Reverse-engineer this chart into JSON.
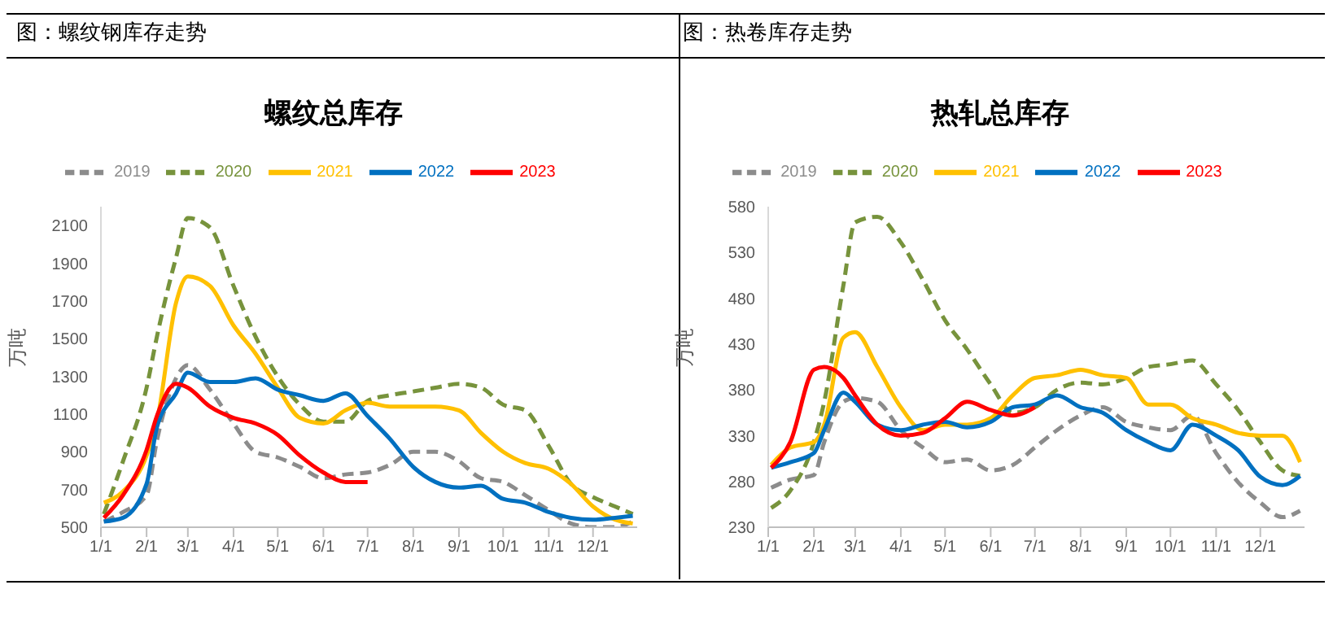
{
  "chart_data": [
    {
      "type": "line",
      "subtitle": "图：螺纹钢库存走势",
      "title": "螺纹总库存",
      "ylabel": "万吨",
      "legend": "top",
      "x": [
        "--01-03",
        "--01-16",
        "--02-01",
        "--02-08",
        "--02-21",
        "--03-01",
        "--03-16",
        "--04-01",
        "--04-16",
        "--05-01",
        "--05-16",
        "--06-01",
        "--06-16",
        "--07-01",
        "--07-16",
        "--08-01",
        "--08-16",
        "--09-01",
        "--09-16",
        "--10-01",
        "--10-16",
        "--11-01",
        "--11-16",
        "--12-01",
        "--12-16",
        "--12-28"
      ],
      "xlim": [
        "--01-01",
        "--12-31"
      ],
      "xticks": [
        {
          "value": "--01-01",
          "label": "1/1"
        },
        {
          "value": "--02-01",
          "label": "2/1"
        },
        {
          "value": "--03-01",
          "label": "3/1"
        },
        {
          "value": "--04-01",
          "label": "4/1"
        },
        {
          "value": "--05-01",
          "label": "5/1"
        },
        {
          "value": "--06-01",
          "label": "6/1"
        },
        {
          "value": "--07-01",
          "label": "7/1"
        },
        {
          "value": "--08-01",
          "label": "8/1"
        },
        {
          "value": "--09-01",
          "label": "9/1"
        },
        {
          "value": "--10-01",
          "label": "10/1"
        },
        {
          "value": "--11-01",
          "label": "11/1"
        },
        {
          "value": "--12-01",
          "label": "12/1"
        }
      ],
      "ylim": [
        500,
        2200
      ],
      "yticks": [
        500,
        700,
        900,
        1100,
        1300,
        1500,
        1700,
        1900,
        2100
      ],
      "series": [
        {
          "name": "2019",
          "color": "#8c8c8c",
          "line_style": "dashed",
          "values": [
            530,
            580,
            670,
            960,
            1290,
            1360,
            1230,
            1050,
            900,
            870,
            820,
            760,
            780,
            790,
            830,
            900,
            900,
            850,
            760,
            740,
            670,
            590,
            520,
            500,
            500,
            530
          ]
        },
        {
          "name": "2020",
          "color": "#77933c",
          "line_style": "dashed",
          "values": [
            570,
            850,
            1240,
            1510,
            1930,
            2140,
            2090,
            1780,
            1510,
            1300,
            1150,
            1060,
            1060,
            1170,
            1200,
            1220,
            1240,
            1260,
            1240,
            1150,
            1120,
            930,
            730,
            660,
            610,
            570
          ]
        },
        {
          "name": "2021",
          "color": "#ffc000",
          "line_style": "solid",
          "values": [
            630,
            690,
            880,
            1060,
            1690,
            1830,
            1780,
            1570,
            1420,
            1240,
            1080,
            1050,
            1120,
            1160,
            1140,
            1140,
            1140,
            1120,
            1000,
            900,
            840,
            810,
            730,
            610,
            540,
            520
          ]
        },
        {
          "name": "2022",
          "color": "#0070c0",
          "line_style": "solid",
          "values": [
            530,
            550,
            730,
            1030,
            1210,
            1320,
            1270,
            1270,
            1290,
            1230,
            1200,
            1170,
            1210,
            1090,
            970,
            820,
            740,
            710,
            720,
            650,
            630,
            580,
            550,
            540,
            550,
            560
          ]
        },
        {
          "name": "2023",
          "color": "#ff0000",
          "line_style": "solid",
          "values": [
            550,
            670,
            910,
            1090,
            1260,
            1240,
            1140,
            1080,
            1050,
            990,
            880,
            790,
            740,
            740,
            null,
            null,
            null,
            null,
            null,
            null,
            null,
            null,
            null,
            null,
            null,
            null
          ]
        }
      ]
    },
    {
      "type": "line",
      "subtitle": "图：热卷库存走势",
      "title": "热轧总库存",
      "ylabel": "万吨",
      "legend": "top",
      "x": [
        "--01-03",
        "--01-16",
        "--02-01",
        "--02-08",
        "--02-21",
        "--03-01",
        "--03-16",
        "--04-01",
        "--04-16",
        "--05-01",
        "--05-16",
        "--06-01",
        "--06-16",
        "--07-01",
        "--07-16",
        "--08-01",
        "--08-16",
        "--09-01",
        "--09-16",
        "--10-01",
        "--10-16",
        "--11-01",
        "--11-16",
        "--12-01",
        "--12-16",
        "--12-28"
      ],
      "xlim": [
        "--01-01",
        "--12-31"
      ],
      "xticks": [
        {
          "value": "--01-01",
          "label": "1/1"
        },
        {
          "value": "--02-01",
          "label": "2/1"
        },
        {
          "value": "--03-01",
          "label": "3/1"
        },
        {
          "value": "--04-01",
          "label": "4/1"
        },
        {
          "value": "--05-01",
          "label": "5/1"
        },
        {
          "value": "--06-01",
          "label": "6/1"
        },
        {
          "value": "--07-01",
          "label": "7/1"
        },
        {
          "value": "--08-01",
          "label": "8/1"
        },
        {
          "value": "--09-01",
          "label": "9/1"
        },
        {
          "value": "--10-01",
          "label": "10/1"
        },
        {
          "value": "--11-01",
          "label": "11/1"
        },
        {
          "value": "--12-01",
          "label": "12/1"
        }
      ],
      "ylim": [
        230,
        580
      ],
      "yticks": [
        230,
        280,
        330,
        380,
        430,
        480,
        530,
        580
      ],
      "series": [
        {
          "name": "2019",
          "color": "#8c8c8c",
          "line_style": "dashed",
          "values": [
            273,
            282,
            287,
            323,
            367,
            371,
            367,
            336,
            317,
            301,
            304,
            292,
            298,
            317,
            336,
            352,
            361,
            345,
            339,
            336,
            352,
            311,
            279,
            257,
            241,
            248
          ]
        },
        {
          "name": "2020",
          "color": "#77933c",
          "line_style": "dashed",
          "values": [
            251,
            270,
            323,
            367,
            494,
            563,
            569,
            541,
            500,
            456,
            424,
            386,
            355,
            361,
            380,
            388,
            386,
            393,
            405,
            408,
            412,
            386,
            358,
            323,
            292,
            286
          ]
        },
        {
          "name": "2021",
          "color": "#ffc000",
          "line_style": "solid",
          "values": [
            298,
            317,
            323,
            342,
            437,
            443,
            405,
            361,
            336,
            342,
            342,
            349,
            374,
            393,
            396,
            402,
            396,
            393,
            364,
            364,
            349,
            342,
            333,
            330,
            330,
            301
          ]
        },
        {
          "name": "2022",
          "color": "#0070c0",
          "line_style": "solid",
          "values": [
            295,
            301,
            311,
            336,
            377,
            367,
            342,
            336,
            342,
            345,
            339,
            345,
            361,
            364,
            374,
            361,
            355,
            336,
            323,
            314,
            342,
            330,
            314,
            285,
            276,
            286
          ]
        },
        {
          "name": "2023",
          "color": "#ff0000",
          "line_style": "solid",
          "values": [
            295,
            323,
            402,
            405,
            393,
            374,
            342,
            330,
            333,
            349,
            367,
            358,
            352,
            361,
            null,
            null,
            null,
            null,
            null,
            null,
            null,
            null,
            null,
            null,
            null,
            null
          ]
        }
      ]
    }
  ]
}
